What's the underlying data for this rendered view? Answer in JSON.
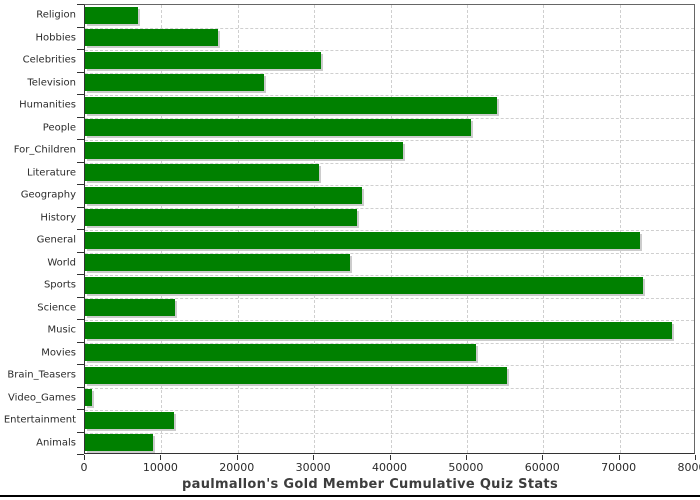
{
  "title": "paulmallon's Gold Member Cumulative Quiz Stats",
  "chart_data": {
    "type": "bar",
    "orientation": "horizontal",
    "title": "paulmallon's Gold Member Cumulative Quiz Stats",
    "categories": [
      "Religion",
      "Hobbies",
      "Celebrities",
      "Television",
      "Humanities",
      "People",
      "For_Children",
      "Literature",
      "Geography",
      "History",
      "General",
      "World",
      "Sports",
      "Science",
      "Music",
      "Movies",
      "Brain_Teasers",
      "Video_Games",
      "Entertainment",
      "Animals"
    ],
    "values": [
      7000,
      17400,
      30900,
      23500,
      53900,
      50500,
      41700,
      30600,
      36300,
      35600,
      72700,
      34700,
      73000,
      11800,
      76800,
      51200,
      55300,
      900,
      11600,
      8900
    ],
    "xlim": [
      0,
      80000
    ],
    "x_ticks": [
      0,
      10000,
      20000,
      30000,
      40000,
      50000,
      60000,
      70000,
      80000
    ],
    "x_tick_labels": [
      "0",
      "10000",
      "20000",
      "30000",
      "40000",
      "50000",
      "60000",
      "70000",
      "80000"
    ],
    "grid_style": "dashed",
    "legend": "none",
    "bar_color": "#008000",
    "shadow_color": "#cccccc",
    "grid_color": "#cfcfcf",
    "background_color": "#ffffff"
  }
}
